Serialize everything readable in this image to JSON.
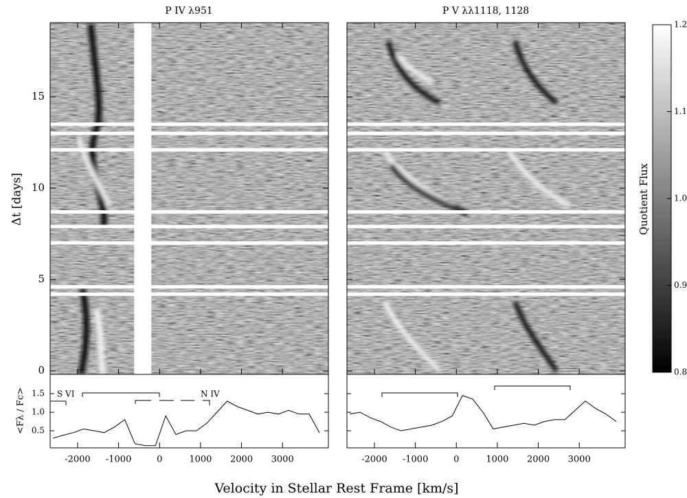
{
  "panels": [
    {
      "title": "P IV λ951"
    },
    {
      "title": "P V λλ1118, 1128"
    }
  ],
  "ylabel": "Δt [days]",
  "xlabel": "Velocity in Stellar Rest Frame [km/s]",
  "xlim": [
    -2670,
    4120
  ],
  "xticks": [
    -2000,
    -1000,
    0,
    1000,
    2000,
    3000
  ],
  "ylim": [
    -0.19,
    19.06
  ],
  "yticks": [
    0,
    5,
    10,
    15
  ],
  "gaps": [
    4.2,
    4.6,
    7.0,
    7.9,
    8.7,
    12.1,
    13.0,
    13.5
  ],
  "mask": [
    -620,
    -200
  ],
  "colorbar": {
    "label": "Quotient Flux",
    "lim": [
      0.8,
      1.2
    ],
    "ticks": [
      0.8,
      0.9,
      {
        "value": 1,
        "label": "1.0"
      },
      1.1,
      1.2
    ]
  },
  "profile": {
    "ylabel": "<Fλ / Fc>",
    "ylim": [
      0.04,
      2.02
    ],
    "yticks": [
      0.5,
      {
        "value": 1,
        "label": "1.0"
      },
      1.5
    ],
    "x": [
      -2600,
      -2350,
      -2100,
      -1850,
      -1600,
      -1350,
      -1100,
      -850,
      -600,
      -350,
      -100,
      150,
      400,
      650,
      900,
      1150,
      1400,
      1650,
      1900,
      2150,
      2400,
      2650,
      2900,
      3150,
      3400,
      3650,
      3900
    ],
    "series": [
      {
        "values": [
          0.3,
          0.38,
          0.45,
          0.55,
          0.5,
          0.45,
          0.6,
          0.8,
          0.15,
          0.1,
          0.1,
          0.9,
          0.4,
          0.5,
          0.5,
          0.7,
          1.0,
          1.3,
          1.15,
          1.05,
          0.95,
          1.0,
          0.95,
          1.05,
          0.95,
          0.95,
          0.45
        ]
      },
      {
        "values": [
          0.95,
          1.0,
          0.85,
          0.75,
          0.6,
          0.5,
          0.55,
          0.6,
          0.65,
          0.75,
          0.9,
          1.45,
          1.35,
          1.0,
          0.55,
          0.6,
          0.65,
          0.7,
          0.65,
          0.75,
          0.8,
          0.8,
          1.05,
          1.3,
          1.1,
          0.95,
          0.75
        ]
      }
    ]
  },
  "annotations": [
    "S VI",
    "N IV"
  ]
}
